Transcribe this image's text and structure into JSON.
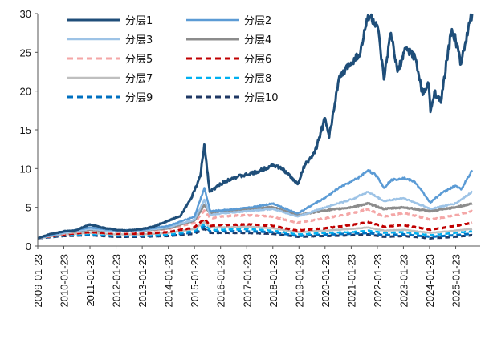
{
  "chart_data": {
    "type": "line",
    "title": "",
    "xlabel": "",
    "ylabel": "",
    "ylim": [
      0,
      30
    ],
    "yticks": [
      "0",
      "5",
      "10",
      "15",
      "20",
      "25",
      "30"
    ],
    "xlim": [
      "2009-01-23",
      "2025-12-31"
    ],
    "xticks": [
      "2009-01-23",
      "2010-01-23",
      "2011-01-23",
      "2012-01-23",
      "2013-01-23",
      "2014-01-23",
      "2015-01-23",
      "2016-01-23",
      "2017-01-23",
      "2018-01-23",
      "2019-01-23",
      "2020-01-23",
      "2021-01-23",
      "2022-01-23",
      "2023-01-23",
      "2024-01-23",
      "2025-01-23"
    ],
    "grid": false,
    "legend_position": "top-left",
    "series": [
      {
        "name": "分层1",
        "color": "#1f4e79",
        "style": "solid",
        "width": 3,
        "points": [
          [
            "2009-01-23",
            1.0
          ],
          [
            "2009-07-01",
            1.5
          ],
          [
            "2010-01-23",
            1.9
          ],
          [
            "2010-07-01",
            2.0
          ],
          [
            "2011-01-23",
            2.8
          ],
          [
            "2011-07-01",
            2.4
          ],
          [
            "2012-01-23",
            2.1
          ],
          [
            "2012-07-01",
            2.0
          ],
          [
            "2013-01-23",
            2.2
          ],
          [
            "2013-07-01",
            2.5
          ],
          [
            "2014-01-23",
            3.3
          ],
          [
            "2014-07-01",
            3.8
          ],
          [
            "2014-12-01",
            6.0
          ],
          [
            "2015-04-15",
            9.0
          ],
          [
            "2015-06-10",
            13.1
          ],
          [
            "2015-08-25",
            7.0
          ],
          [
            "2016-01-23",
            8.0
          ],
          [
            "2016-07-01",
            8.8
          ],
          [
            "2017-01-23",
            9.2
          ],
          [
            "2017-07-01",
            9.6
          ],
          [
            "2018-01-23",
            10.5
          ],
          [
            "2018-07-01",
            9.8
          ],
          [
            "2019-01-05",
            8.0
          ],
          [
            "2019-04-15",
            10.5
          ],
          [
            "2019-09-01",
            12.0
          ],
          [
            "2020-01-23",
            16.5
          ],
          [
            "2020-03-20",
            14.0
          ],
          [
            "2020-08-01",
            21.5
          ],
          [
            "2021-01-01",
            23.5
          ],
          [
            "2021-06-01",
            25.0
          ],
          [
            "2021-09-15",
            29.8
          ],
          [
            "2022-01-23",
            28.5
          ],
          [
            "2022-04-25",
            21.5
          ],
          [
            "2022-08-01",
            27.5
          ],
          [
            "2022-11-01",
            22.5
          ],
          [
            "2023-03-01",
            25.5
          ],
          [
            "2023-07-01",
            24.5
          ],
          [
            "2023-10-20",
            19.5
          ],
          [
            "2024-01-10",
            21.0
          ],
          [
            "2024-02-05",
            17.3
          ],
          [
            "2024-04-01",
            20.0
          ],
          [
            "2024-07-01",
            18.5
          ],
          [
            "2024-09-20",
            24.0
          ],
          [
            "2024-12-01",
            28.0
          ],
          [
            "2025-01-23",
            26.5
          ],
          [
            "2025-04-08",
            23.5
          ],
          [
            "2025-06-01",
            26.0
          ],
          [
            "2025-09-10",
            30.0
          ]
        ]
      },
      {
        "name": "分层2",
        "color": "#5b9bd5",
        "style": "solid",
        "width": 2.5,
        "points": [
          [
            "2009-01-23",
            1.0
          ],
          [
            "2010-01-23",
            1.8
          ],
          [
            "2011-01-23",
            2.4
          ],
          [
            "2012-01-23",
            2.0
          ],
          [
            "2013-01-23",
            2.1
          ],
          [
            "2014-01-23",
            2.6
          ],
          [
            "2015-01-23",
            3.8
          ],
          [
            "2015-06-10",
            7.5
          ],
          [
            "2015-09-01",
            4.5
          ],
          [
            "2016-01-23",
            4.6
          ],
          [
            "2017-01-23",
            4.9
          ],
          [
            "2018-01-23",
            5.5
          ],
          [
            "2019-01-05",
            4.2
          ],
          [
            "2019-09-01",
            5.5
          ],
          [
            "2020-01-23",
            6.2
          ],
          [
            "2020-08-01",
            7.5
          ],
          [
            "2021-01-23",
            8.3
          ],
          [
            "2021-06-01",
            9.0
          ],
          [
            "2021-09-15",
            9.8
          ],
          [
            "2022-01-23",
            9.0
          ],
          [
            "2022-04-25",
            7.5
          ],
          [
            "2022-08-01",
            8.5
          ],
          [
            "2023-01-23",
            8.8
          ],
          [
            "2023-07-01",
            8.3
          ],
          [
            "2024-02-05",
            5.6
          ],
          [
            "2024-07-01",
            6.8
          ],
          [
            "2025-01-23",
            7.8
          ],
          [
            "2025-04-08",
            7.3
          ],
          [
            "2025-09-10",
            9.8
          ]
        ]
      },
      {
        "name": "分层3",
        "color": "#9dc3e6",
        "style": "solid",
        "width": 2.5,
        "points": [
          [
            "2009-01-23",
            1.0
          ],
          [
            "2010-01-23",
            1.7
          ],
          [
            "2011-01-23",
            2.2
          ],
          [
            "2012-01-23",
            1.9
          ],
          [
            "2013-01-23",
            2.0
          ],
          [
            "2014-01-23",
            2.4
          ],
          [
            "2015-01-23",
            3.4
          ],
          [
            "2015-06-10",
            6.0
          ],
          [
            "2015-09-01",
            4.0
          ],
          [
            "2016-01-23",
            4.2
          ],
          [
            "2017-01-23",
            4.5
          ],
          [
            "2018-01-23",
            4.8
          ],
          [
            "2019-01-05",
            3.8
          ],
          [
            "2020-01-23",
            5.0
          ],
          [
            "2021-01-23",
            6.0
          ],
          [
            "2021-09-15",
            7.0
          ],
          [
            "2022-04-25",
            5.8
          ],
          [
            "2023-01-23",
            6.2
          ],
          [
            "2024-02-05",
            4.8
          ],
          [
            "2025-01-23",
            5.5
          ],
          [
            "2025-09-10",
            7.0
          ]
        ]
      },
      {
        "name": "分层4",
        "color": "#8c8c8c",
        "style": "solid",
        "width": 3,
        "points": [
          [
            "2009-01-23",
            1.0
          ],
          [
            "2010-01-23",
            1.7
          ],
          [
            "2011-01-23",
            2.1
          ],
          [
            "2012-01-23",
            1.9
          ],
          [
            "2013-01-23",
            2.0
          ],
          [
            "2014-01-23",
            2.3
          ],
          [
            "2015-01-23",
            3.3
          ],
          [
            "2015-06-10",
            5.3
          ],
          [
            "2015-09-01",
            4.2
          ],
          [
            "2016-01-23",
            4.5
          ],
          [
            "2017-01-23",
            4.8
          ],
          [
            "2018-01-23",
            5.0
          ],
          [
            "2019-01-05",
            4.0
          ],
          [
            "2020-01-23",
            4.6
          ],
          [
            "2021-01-23",
            5.0
          ],
          [
            "2021-09-15",
            5.5
          ],
          [
            "2022-04-25",
            4.8
          ],
          [
            "2023-01-23",
            5.0
          ],
          [
            "2024-02-05",
            4.5
          ],
          [
            "2025-01-23",
            5.0
          ],
          [
            "2025-09-10",
            5.5
          ]
        ]
      },
      {
        "name": "分层5",
        "color": "#f4a6a6",
        "style": "dashed",
        "width": 3,
        "points": [
          [
            "2009-01-23",
            1.0
          ],
          [
            "2010-01-23",
            1.6
          ],
          [
            "2011-01-23",
            2.0
          ],
          [
            "2012-01-23",
            1.8
          ],
          [
            "2013-01-23",
            1.9
          ],
          [
            "2014-01-23",
            2.2
          ],
          [
            "2015-01-23",
            3.0
          ],
          [
            "2015-06-10",
            4.6
          ],
          [
            "2015-09-01",
            3.6
          ],
          [
            "2016-01-23",
            3.8
          ],
          [
            "2017-01-23",
            4.0
          ],
          [
            "2018-01-23",
            3.8
          ],
          [
            "2019-01-05",
            3.0
          ],
          [
            "2020-01-23",
            3.6
          ],
          [
            "2021-01-23",
            4.2
          ],
          [
            "2021-09-15",
            4.8
          ],
          [
            "2022-04-25",
            3.8
          ],
          [
            "2023-01-23",
            4.3
          ],
          [
            "2024-02-05",
            3.4
          ],
          [
            "2025-01-23",
            4.0
          ],
          [
            "2025-09-10",
            4.5
          ]
        ]
      },
      {
        "name": "分层6",
        "color": "#c00000",
        "style": "dashed",
        "width": 3,
        "points": [
          [
            "2009-01-23",
            1.0
          ],
          [
            "2010-01-23",
            1.5
          ],
          [
            "2011-01-23",
            1.8
          ],
          [
            "2012-01-23",
            1.6
          ],
          [
            "2013-01-23",
            1.6
          ],
          [
            "2014-01-23",
            1.8
          ],
          [
            "2015-01-23",
            2.4
          ],
          [
            "2015-06-10",
            3.5
          ],
          [
            "2015-09-01",
            2.6
          ],
          [
            "2016-01-23",
            2.7
          ],
          [
            "2017-01-23",
            2.8
          ],
          [
            "2018-01-23",
            2.6
          ],
          [
            "2019-01-05",
            2.0
          ],
          [
            "2020-01-23",
            2.3
          ],
          [
            "2021-01-23",
            2.7
          ],
          [
            "2021-09-15",
            3.1
          ],
          [
            "2022-04-25",
            2.5
          ],
          [
            "2023-01-23",
            2.7
          ],
          [
            "2024-02-05",
            2.1
          ],
          [
            "2025-01-23",
            2.6
          ],
          [
            "2025-09-10",
            3.0
          ]
        ]
      },
      {
        "name": "分层7",
        "color": "#bfbfbf",
        "style": "solid",
        "width": 2.5,
        "points": [
          [
            "2009-01-23",
            1.0
          ],
          [
            "2010-01-23",
            1.5
          ],
          [
            "2011-01-23",
            1.7
          ],
          [
            "2012-01-23",
            1.5
          ],
          [
            "2013-01-23",
            1.5
          ],
          [
            "2014-01-23",
            1.7
          ],
          [
            "2015-01-23",
            2.2
          ],
          [
            "2015-06-10",
            3.1
          ],
          [
            "2015-09-01",
            2.4
          ],
          [
            "2016-01-23",
            2.4
          ],
          [
            "2017-01-23",
            2.5
          ],
          [
            "2018-01-23",
            2.3
          ],
          [
            "2019-01-05",
            1.8
          ],
          [
            "2020-01-23",
            2.0
          ],
          [
            "2021-01-23",
            2.2
          ],
          [
            "2021-09-15",
            2.4
          ],
          [
            "2022-04-25",
            2.0
          ],
          [
            "2023-01-23",
            2.1
          ],
          [
            "2024-02-05",
            1.7
          ],
          [
            "2025-01-23",
            2.0
          ],
          [
            "2025-09-10",
            2.2
          ]
        ]
      },
      {
        "name": "分层8",
        "color": "#00b0f0",
        "style": "dashed",
        "width": 2.5,
        "points": [
          [
            "2009-01-23",
            1.0
          ],
          [
            "2010-01-23",
            1.4
          ],
          [
            "2011-01-23",
            1.6
          ],
          [
            "2012-01-23",
            1.4
          ],
          [
            "2013-01-23",
            1.4
          ],
          [
            "2014-01-23",
            1.5
          ],
          [
            "2015-01-23",
            2.0
          ],
          [
            "2015-06-10",
            2.8
          ],
          [
            "2015-09-01",
            2.1
          ],
          [
            "2016-01-23",
            2.1
          ],
          [
            "2017-01-23",
            2.2
          ],
          [
            "2018-01-23",
            2.0
          ],
          [
            "2019-01-05",
            1.5
          ],
          [
            "2020-01-23",
            1.7
          ],
          [
            "2021-01-23",
            1.8
          ],
          [
            "2021-09-15",
            2.0
          ],
          [
            "2022-04-25",
            1.7
          ],
          [
            "2023-01-23",
            1.8
          ],
          [
            "2024-02-05",
            1.4
          ],
          [
            "2025-01-23",
            1.7
          ],
          [
            "2025-09-10",
            1.9
          ]
        ]
      },
      {
        "name": "分层9",
        "color": "#0070c0",
        "style": "dashed",
        "width": 3,
        "points": [
          [
            "2009-01-23",
            1.0
          ],
          [
            "2010-01-23",
            1.4
          ],
          [
            "2011-01-23",
            1.5
          ],
          [
            "2012-01-23",
            1.3
          ],
          [
            "2013-01-23",
            1.3
          ],
          [
            "2014-01-23",
            1.4
          ],
          [
            "2015-01-23",
            1.8
          ],
          [
            "2015-06-10",
            2.5
          ],
          [
            "2015-09-01",
            1.9
          ],
          [
            "2016-01-23",
            1.9
          ],
          [
            "2017-01-23",
            1.9
          ],
          [
            "2018-01-23",
            1.8
          ],
          [
            "2019-01-05",
            1.3
          ],
          [
            "2020-01-23",
            1.5
          ],
          [
            "2021-01-23",
            1.6
          ],
          [
            "2021-09-15",
            1.7
          ],
          [
            "2022-04-25",
            1.4
          ],
          [
            "2023-01-23",
            1.5
          ],
          [
            "2024-02-05",
            1.2
          ],
          [
            "2025-01-23",
            1.4
          ],
          [
            "2025-09-10",
            1.6
          ]
        ]
      },
      {
        "name": "分层10",
        "color": "#1f3864",
        "style": "dashed",
        "width": 3,
        "points": [
          [
            "2009-01-23",
            1.0
          ],
          [
            "2010-01-23",
            1.3
          ],
          [
            "2011-01-23",
            1.4
          ],
          [
            "2012-01-23",
            1.2
          ],
          [
            "2013-01-23",
            1.2
          ],
          [
            "2014-01-23",
            1.3
          ],
          [
            "2015-01-23",
            1.6
          ],
          [
            "2015-06-10",
            2.2
          ],
          [
            "2015-09-01",
            1.7
          ],
          [
            "2016-01-23",
            1.7
          ],
          [
            "2017-01-23",
            1.7
          ],
          [
            "2018-01-23",
            1.6
          ],
          [
            "2019-01-05",
            1.2
          ],
          [
            "2020-01-23",
            1.3
          ],
          [
            "2021-01-23",
            1.4
          ],
          [
            "2021-09-15",
            1.5
          ],
          [
            "2022-04-25",
            1.2
          ],
          [
            "2023-01-23",
            1.3
          ],
          [
            "2024-02-05",
            1.0
          ],
          [
            "2025-01-23",
            1.2
          ],
          [
            "2025-09-10",
            1.4
          ]
        ]
      }
    ]
  }
}
